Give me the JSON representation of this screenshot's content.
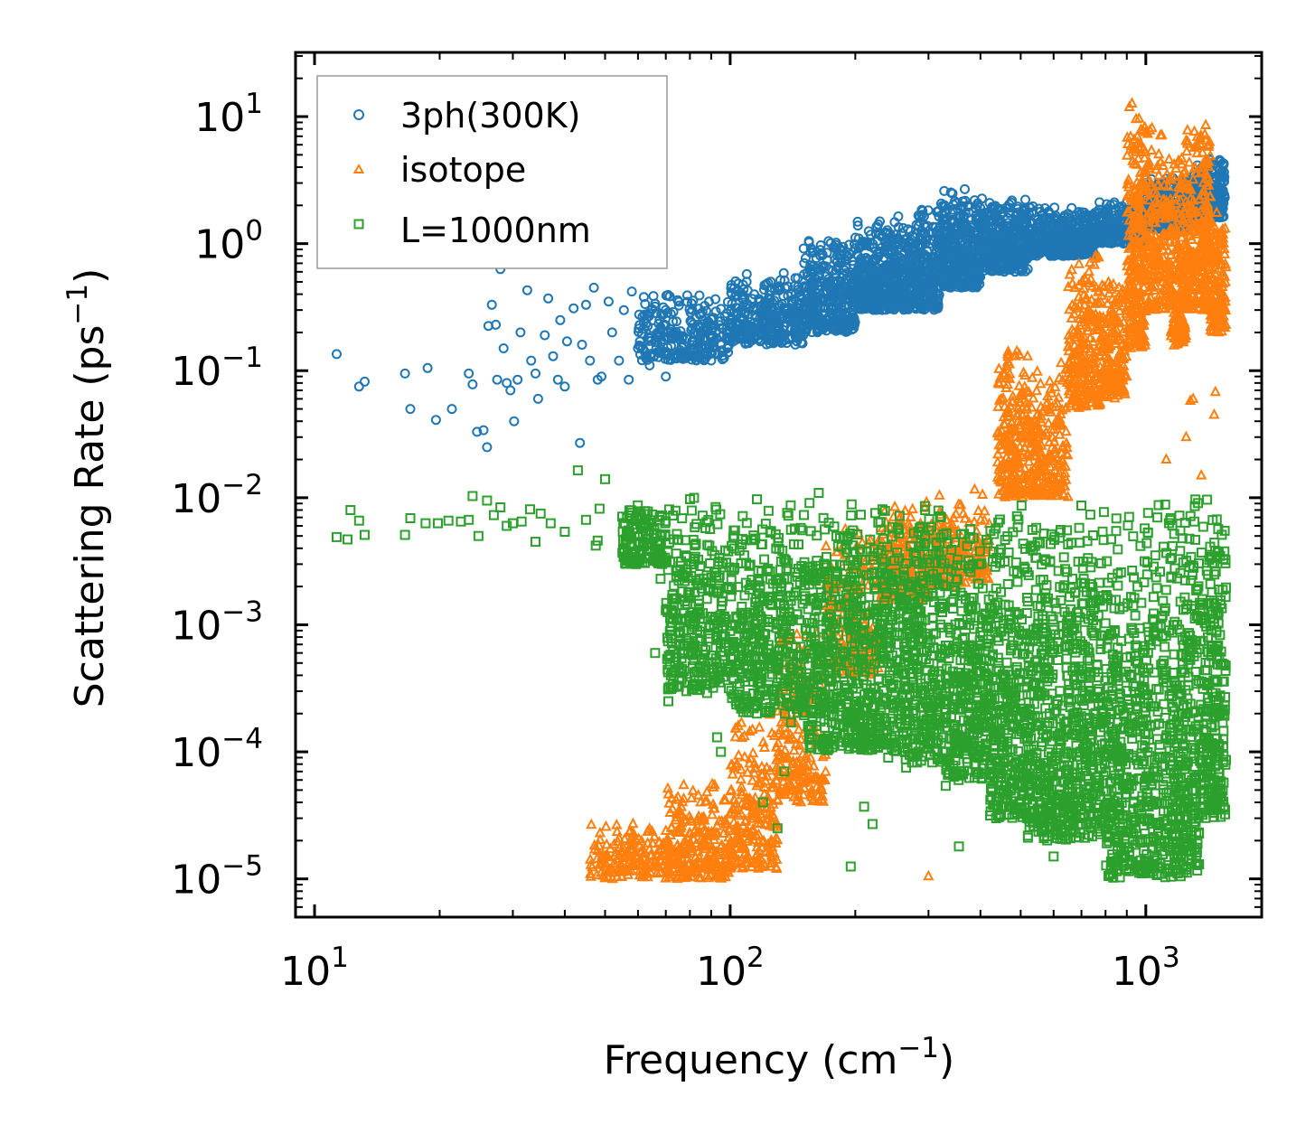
{
  "chart_data": {
    "type": "scatter",
    "title": "",
    "xlabel": {
      "prefix": "Frequency (cm",
      "sup": "−1",
      "suffix": ")"
    },
    "ylabel": {
      "prefix": "Scattering Rate (ps",
      "sup": "−1",
      "suffix": ")"
    },
    "xscale": "log",
    "yscale": "log",
    "xlim": [
      9,
      1900
    ],
    "ylim": [
      5e-06,
      32
    ],
    "x_ticks": [
      {
        "base": "10",
        "exp": "1",
        "value": 10
      },
      {
        "base": "10",
        "exp": "2",
        "value": 100
      },
      {
        "base": "10",
        "exp": "3",
        "value": 1000
      }
    ],
    "y_ticks": [
      {
        "base": "10",
        "exp": "1",
        "value": 10
      },
      {
        "base": "10",
        "exp": "0",
        "value": 1
      },
      {
        "base": "10",
        "exp": "−1",
        "value": 0.1
      },
      {
        "base": "10",
        "exp": "−2",
        "value": 0.01
      },
      {
        "base": "10",
        "exp": "−3",
        "value": 0.001
      },
      {
        "base": "10",
        "exp": "−4",
        "value": 0.0001
      },
      {
        "base": "10",
        "exp": "−5",
        "value": 1e-05
      }
    ],
    "legend_position": "top-left",
    "series": [
      {
        "name": "3ph(300K)",
        "marker": "circle",
        "color": "#1f77b4",
        "points": [
          [
            11.3,
            0.135
          ],
          [
            12.8,
            0.075
          ],
          [
            13.2,
            0.082
          ],
          [
            16.5,
            0.095
          ],
          [
            17.0,
            0.05
          ],
          [
            18.7,
            0.105
          ],
          [
            19.6,
            0.041
          ],
          [
            21.4,
            0.05
          ],
          [
            23.5,
            0.095
          ],
          [
            24.0,
            0.078
          ],
          [
            24.6,
            0.033
          ],
          [
            25.5,
            0.034
          ],
          [
            26.2,
            0.225
          ],
          [
            26.7,
            0.33
          ],
          [
            26.0,
            0.025
          ],
          [
            27.3,
            0.23
          ],
          [
            28.0,
            0.63
          ],
          [
            27.5,
            0.085
          ],
          [
            28.5,
            0.15
          ],
          [
            29.0,
            0.08
          ],
          [
            29.6,
            0.07
          ],
          [
            30.2,
            0.04
          ],
          [
            30.8,
            0.085
          ],
          [
            31.3,
            0.2
          ],
          [
            32.5,
            0.43
          ],
          [
            33.2,
            0.12
          ],
          [
            34.0,
            0.095
          ],
          [
            34.5,
            0.06
          ],
          [
            35.8,
            0.19
          ],
          [
            36.5,
            0.37
          ],
          [
            37.5,
            0.13
          ],
          [
            38.5,
            0.085
          ],
          [
            39.0,
            0.25
          ],
          [
            40.0,
            0.075
          ],
          [
            40.5,
            0.17
          ],
          [
            42.0,
            0.31
          ],
          [
            43.5,
            0.027
          ],
          [
            44.0,
            0.16
          ],
          [
            45.0,
            0.33
          ],
          [
            46.0,
            0.12
          ],
          [
            47.0,
            0.45
          ],
          [
            48.0,
            0.085
          ],
          [
            49.0,
            0.09
          ],
          [
            51.0,
            0.35
          ],
          [
            52.0,
            0.2
          ],
          [
            54.0,
            0.12
          ],
          [
            55.5,
            0.3
          ],
          [
            57.0,
            0.085
          ],
          [
            58.0,
            0.42
          ],
          [
            60.0,
            0.15
          ],
          [
            62.0,
            0.38
          ],
          [
            64.0,
            0.11
          ],
          [
            66.0,
            0.32
          ],
          [
            68.0,
            0.22
          ],
          [
            70.0,
            0.09
          ],
          [
            72.0,
            0.28
          ]
        ],
        "bands": [
          [
            60,
            100,
            0.12,
            0.42,
            260
          ],
          [
            100,
            150,
            0.16,
            0.6,
            320
          ],
          [
            150,
            200,
            0.2,
            1.1,
            340
          ],
          [
            200,
            250,
            0.3,
            1.6,
            320
          ],
          [
            250,
            320,
            0.3,
            2.0,
            360
          ],
          [
            320,
            400,
            0.45,
            2.8,
            360
          ],
          [
            400,
            520,
            0.6,
            2.4,
            360
          ],
          [
            520,
            750,
            0.8,
            2.0,
            380
          ],
          [
            750,
            1000,
            1.0,
            2.2,
            300
          ],
          [
            1000,
            1300,
            1.3,
            3.5,
            320
          ],
          [
            1300,
            1550,
            1.6,
            5.0,
            240
          ]
        ]
      },
      {
        "name": "isotope",
        "marker": "triangle",
        "color": "#ff7f0e",
        "points": [
          [
            300,
            1.05e-05
          ],
          [
            1280,
            0.058
          ],
          [
            1460,
            0.045
          ],
          [
            1470,
            0.068
          ],
          [
            1300,
            0.06
          ],
          [
            1120,
            0.02
          ],
          [
            1250,
            0.03
          ],
          [
            1360,
            0.015
          ]
        ],
        "bands": [
          [
            46,
            70,
            1e-05,
            3e-05,
            160
          ],
          [
            70,
            100,
            1e-05,
            6e-05,
            260
          ],
          [
            100,
            130,
            1.2e-05,
            0.0002,
            220
          ],
          [
            130,
            170,
            4e-05,
            0.0012,
            220
          ],
          [
            170,
            230,
            0.0004,
            0.006,
            200
          ],
          [
            230,
            300,
            0.0015,
            0.01,
            200
          ],
          [
            300,
            420,
            0.002,
            0.012,
            200
          ],
          [
            440,
            520,
            0.01,
            0.15,
            200
          ],
          [
            520,
            650,
            0.01,
            0.12,
            200
          ],
          [
            650,
            780,
            0.05,
            0.9,
            220
          ],
          [
            780,
            900,
            0.06,
            0.6,
            180
          ],
          [
            900,
            1000,
            0.15,
            15,
            260
          ],
          [
            1000,
            1150,
            0.3,
            9,
            200
          ],
          [
            1150,
            1250,
            0.15,
            6,
            160
          ],
          [
            1250,
            1430,
            0.3,
            10,
            260
          ],
          [
            1430,
            1560,
            0.2,
            2.5,
            140
          ]
        ]
      },
      {
        "name": "L=1000nm",
        "marker": "square",
        "color": "#2ca02c",
        "points": [
          [
            11.3,
            0.0049
          ],
          [
            12.0,
            0.0047
          ],
          [
            12.2,
            0.008
          ],
          [
            12.8,
            0.0066
          ],
          [
            13.2,
            0.0051
          ],
          [
            16.5,
            0.0051
          ],
          [
            17.0,
            0.0069
          ],
          [
            18.5,
            0.0063
          ],
          [
            19.8,
            0.0063
          ],
          [
            21.0,
            0.0066
          ],
          [
            22.5,
            0.0065
          ],
          [
            23.5,
            0.0067
          ],
          [
            24.0,
            0.0103
          ],
          [
            24.8,
            0.005
          ],
          [
            26.0,
            0.0095
          ],
          [
            27.0,
            0.0073
          ],
          [
            28.0,
            0.0084
          ],
          [
            29.0,
            0.006
          ],
          [
            30.0,
            0.0063
          ],
          [
            31.5,
            0.0065
          ],
          [
            33.0,
            0.0081
          ],
          [
            34.0,
            0.0045
          ],
          [
            35.0,
            0.0075
          ],
          [
            37.0,
            0.0063
          ],
          [
            40.0,
            0.0054
          ],
          [
            43.0,
            0.0164
          ],
          [
            45.0,
            0.0067
          ],
          [
            48.0,
            0.0046
          ],
          [
            50.0,
            0.014
          ],
          [
            55.0,
            0.0071
          ],
          [
            47.5,
            0.0042
          ],
          [
            48.5,
            0.0082
          ],
          [
            68,
            0.0023
          ],
          [
            70,
            0.0013
          ],
          [
            71,
            0.00025
          ],
          [
            66,
            0.0006
          ],
          [
            86,
            0.00045
          ],
          [
            88,
            0.00029
          ],
          [
            93,
            0.00013
          ],
          [
            95,
            0.0001
          ],
          [
            120,
            4e-05
          ],
          [
            130,
            2.5e-05
          ],
          [
            135,
            7e-05
          ],
          [
            140,
            0.00017
          ],
          [
            195,
            1.25e-05
          ],
          [
            210,
            3.7e-05
          ],
          [
            220,
            2.7e-05
          ],
          [
            240,
            9e-05
          ],
          [
            265,
            7.5e-05
          ],
          [
            290,
            9.2e-05
          ],
          [
            330,
            5.4e-05
          ],
          [
            355,
            1.8e-05
          ],
          [
            310,
            0.0001
          ],
          [
            600,
            1.5e-05
          ],
          [
            1020,
            1.2e-05
          ],
          [
            1050,
            1.5e-05
          ],
          [
            1160,
            1.15e-05
          ],
          [
            1180,
            1.35e-05
          ]
        ],
        "bands": [
          [
            55,
            70,
            0.003,
            0.009,
            160
          ],
          [
            70,
            100,
            0.0003,
            0.012,
            320
          ],
          [
            100,
            150,
            0.0002,
            0.011,
            380
          ],
          [
            150,
            200,
            0.0001,
            0.011,
            360
          ],
          [
            200,
            260,
            0.0001,
            0.011,
            340
          ],
          [
            260,
            330,
            8e-05,
            0.012,
            340
          ],
          [
            330,
            420,
            6e-05,
            0.009,
            340
          ],
          [
            420,
            520,
            3e-05,
            0.009,
            340
          ],
          [
            520,
            650,
            2e-05,
            0.01,
            360
          ],
          [
            650,
            800,
            2e-05,
            0.01,
            340
          ],
          [
            800,
            950,
            1e-05,
            0.008,
            280
          ],
          [
            950,
            1150,
            1e-05,
            0.01,
            280
          ],
          [
            1150,
            1350,
            1e-05,
            0.013,
            300
          ],
          [
            1350,
            1560,
            3e-05,
            0.012,
            260
          ]
        ]
      }
    ]
  }
}
